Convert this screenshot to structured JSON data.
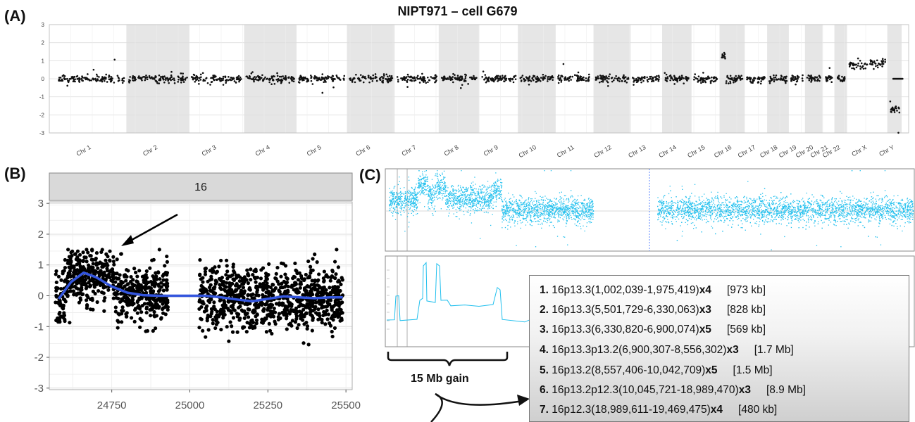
{
  "chart_data": [
    {
      "panel": "(A)",
      "type": "scatter",
      "title": "NIPT971 – cell G679",
      "ylim": [
        -3,
        3
      ],
      "yticks": [
        "3",
        "2",
        "1",
        "0",
        "-1",
        "-2",
        "-3"
      ],
      "categories": [
        "Chr 1",
        "Chr 2",
        "Chr 3",
        "Chr 4",
        "Chr 5",
        "Chr 6",
        "Chr 7",
        "Chr 8",
        "Chr 9",
        "Chr 10",
        "Chr 11",
        "Chr 12",
        "Chr 13",
        "Chr 14",
        "Chr 15",
        "Chr 16",
        "Chr 17",
        "Chr 18",
        "Chr 19",
        "Chr 20",
        "Chr 21",
        "Chr 22",
        "Chr X",
        "Chr Y"
      ],
      "grid": true,
      "segments": [
        {
          "chr": "Chr 1",
          "level": 0
        },
        {
          "chr": "Chr 2",
          "level": 0
        },
        {
          "chr": "Chr 3",
          "level": 0
        },
        {
          "chr": "Chr 4",
          "level": 0
        },
        {
          "chr": "Chr 5",
          "level": 0
        },
        {
          "chr": "Chr 6",
          "level": 0
        },
        {
          "chr": "Chr 7",
          "level": 0
        },
        {
          "chr": "Chr 8",
          "level": 0
        },
        {
          "chr": "Chr 9",
          "level": 0
        },
        {
          "chr": "Chr 10",
          "level": 0
        },
        {
          "chr": "Chr 11",
          "level": 0
        },
        {
          "chr": "Chr 12",
          "level": 0
        },
        {
          "chr": "Chr 13",
          "level": 0
        },
        {
          "chr": "Chr 14",
          "level": 0
        },
        {
          "chr": "Chr 15",
          "level": 0
        },
        {
          "chr": "Chr 16",
          "level": 0,
          "gain_start_level": 1.2
        },
        {
          "chr": "Chr 17",
          "level": 0
        },
        {
          "chr": "Chr 18",
          "level": 0
        },
        {
          "chr": "Chr 19",
          "level": 0
        },
        {
          "chr": "Chr 20",
          "level": 0
        },
        {
          "chr": "Chr 21",
          "level": 0
        },
        {
          "chr": "Chr 22",
          "level": 0
        },
        {
          "chr": "Chr X",
          "level": 0.8
        },
        {
          "chr": "Chr Y",
          "level": -1.7
        }
      ]
    },
    {
      "panel": "(B)",
      "type": "scatter",
      "facet_label": "16",
      "xlim": [
        24550,
        25520
      ],
      "ylim": [
        -3.05,
        3.05
      ],
      "xticks": [
        24750,
        25000,
        25250,
        25500
      ],
      "yticks": [
        3,
        2,
        1,
        0,
        -1,
        -2,
        -3
      ],
      "grid": true,
      "smooth_line": {
        "color": "#3355dd",
        "x": [
          24580,
          24620,
          24660,
          24700,
          24750,
          24800,
          24850,
          24900,
          24950,
          25000,
          25050,
          25100,
          25150,
          25200,
          25250,
          25300,
          25350,
          25400,
          25450,
          25490
        ],
        "y": [
          -0.1,
          0.45,
          0.75,
          0.6,
          0.3,
          0.1,
          0.02,
          0.0,
          0.0,
          0.0,
          0.0,
          -0.05,
          -0.12,
          -0.18,
          -0.1,
          -0.02,
          -0.05,
          -0.08,
          -0.05,
          -0.05
        ]
      },
      "point_regions": [
        {
          "x_from": 24570,
          "x_to": 24760,
          "center": 0.65,
          "spread": 0.45
        },
        {
          "x_from": 24760,
          "x_to": 24930,
          "center": 0.05,
          "spread": 0.45
        },
        {
          "x_from": 25030,
          "x_to": 25490,
          "center": -0.05,
          "spread": 0.5
        }
      ]
    },
    {
      "panel": "(C)",
      "type": "scatter",
      "color": "#22c0ee"
    }
  ],
  "labels": {
    "panel_a": "(A)",
    "panel_b": "(B)",
    "panel_c": "(C)",
    "gain": "15 Mb gain"
  },
  "cnv_list": [
    {
      "num": "1.",
      "region": "16p13.3(1,002,039-1,975,419)",
      "cn": "x4",
      "size": "[973 kb]"
    },
    {
      "num": "2.",
      "region": "16p13.3(5,501,729-6,330,063)",
      "cn": "x3",
      "size": "[828 kb]"
    },
    {
      "num": "3.",
      "region": "16p13.3(6,330,820-6,900,074)",
      "cn": "x5",
      "size": "[569 kb]"
    },
    {
      "num": "4.",
      "region": "16p13.3p13.2(6,900,307-8,556,302)",
      "cn": "x3",
      "size": "[1.7 Mb]"
    },
    {
      "num": "5.",
      "region": "16p13.2(8,557,406-10,042,709)",
      "cn": "x5",
      "size": "[1.5 Mb]"
    },
    {
      "num": "6.",
      "region": "16p13.2p12.3(10,045,721-18,989,470)",
      "cn": "x3",
      "size": "[8.9 Mb]"
    },
    {
      "num": "7.",
      "region": "16p12.3(18,989,611-19,469,475)",
      "cn": "x4",
      "size": "[480 kb]"
    }
  ]
}
